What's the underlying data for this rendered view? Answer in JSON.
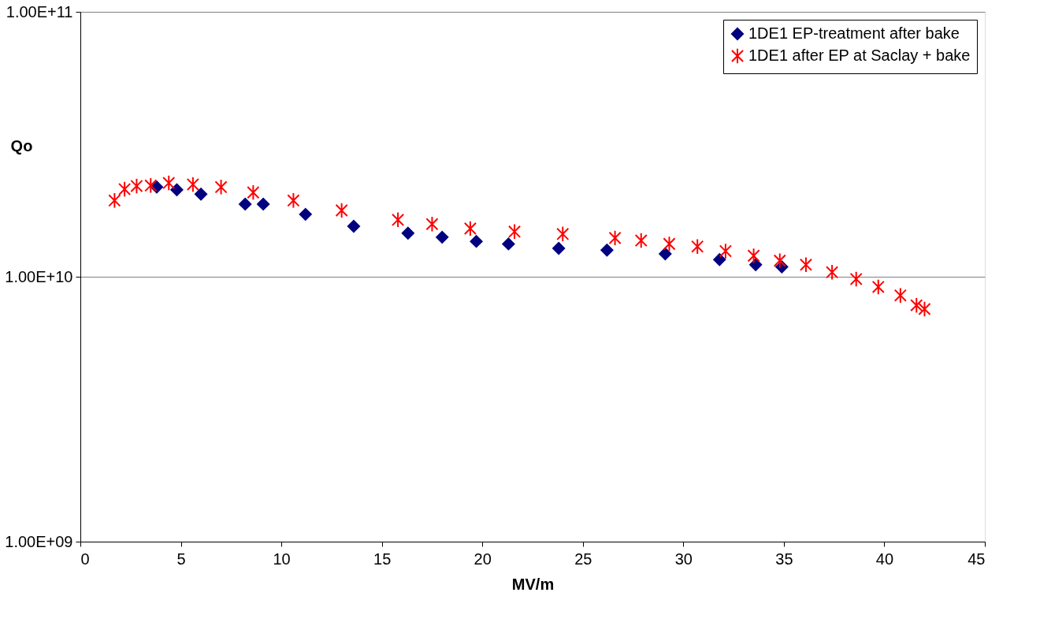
{
  "chart_data": {
    "type": "scatter",
    "xlabel": "MV/m",
    "ylabel": "Qo",
    "log": "y",
    "grid": "y",
    "legend": "top right",
    "xlim": [
      0,
      45
    ],
    "xticks": [
      0,
      5,
      10,
      15,
      20,
      25,
      30,
      35,
      40,
      45
    ],
    "ylim": [
      1000000000.0,
      100000000000.0
    ],
    "yticks": [
      {
        "value": 1000000000.0,
        "label": "1.00E+09"
      },
      {
        "value": 10000000000.0,
        "label": "1.00E+10"
      },
      {
        "value": 100000000000.0,
        "label": "1.00E+11"
      }
    ],
    "series": [
      {
        "name": "1DE1 EP-treatment after bake",
        "color": "#000080",
        "marker": "diamond",
        "x": [
          3.8,
          4.8,
          6.0,
          8.2,
          9.1,
          11.2,
          13.6,
          16.3,
          18.0,
          19.7,
          21.3,
          23.8,
          26.2,
          29.1,
          31.8,
          33.6,
          34.9
        ],
        "values": [
          21800000000.0,
          21300000000.0,
          20500000000.0,
          18800000000.0,
          18800000000.0,
          17200000000.0,
          15500000000.0,
          14600000000.0,
          14100000000.0,
          13600000000.0,
          13300000000.0,
          12800000000.0,
          12600000000.0,
          12200000000.0,
          11600000000.0,
          11100000000.0,
          10900000000.0
        ]
      },
      {
        "name": "1DE1 after EP at Saclay + bake",
        "color": "#ff0000",
        "marker": "cross",
        "x": [
          1.7,
          2.2,
          2.8,
          3.5,
          4.4,
          5.6,
          7.0,
          8.6,
          10.6,
          13.0,
          15.8,
          17.5,
          19.4,
          21.6,
          24.0,
          26.6,
          27.9,
          29.3,
          30.7,
          32.1,
          33.5,
          34.8,
          36.1,
          37.4,
          38.6,
          39.7,
          40.8,
          41.6,
          42.0
        ],
        "values": [
          19400000000.0,
          21400000000.0,
          22000000000.0,
          22100000000.0,
          22600000000.0,
          22300000000.0,
          21800000000.0,
          20800000000.0,
          19400000000.0,
          17800000000.0,
          16400000000.0,
          15800000000.0,
          15200000000.0,
          14800000000.0,
          14500000000.0,
          14000000000.0,
          13700000000.0,
          13300000000.0,
          13000000000.0,
          12500000000.0,
          12000000000.0,
          11500000000.0,
          11100000000.0,
          10400000000.0,
          9800000000.0,
          9150000000.0,
          8500000000.0,
          7800000000.0,
          7550000000.0
        ]
      }
    ]
  }
}
